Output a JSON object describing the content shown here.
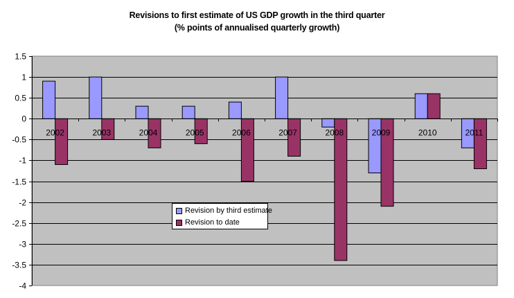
{
  "chart_data": {
    "type": "bar",
    "title": "Revisions to first estimate of US GDP growth in the third quarter",
    "subtitle": "(% points of annualised quarterly growth)",
    "xlabel": "",
    "ylabel": "",
    "ylim": [
      -4,
      1.5
    ],
    "yticks": [
      1.5,
      1,
      0.5,
      0,
      -0.5,
      -1,
      -1.5,
      -2,
      -2.5,
      -3,
      -3.5,
      -4
    ],
    "ytick_labels": [
      "1.5",
      "1",
      "0.5",
      "0",
      "-0.5",
      "-1",
      "-1.5",
      "-2",
      "-2.5",
      "-3",
      "-3.5",
      "-4"
    ],
    "grid": true,
    "categories": [
      "2002",
      "2003",
      "2004",
      "2005",
      "2006",
      "2007",
      "2008",
      "2009",
      "2010",
      "2011"
    ],
    "series": [
      {
        "name": "Revision by third estimate",
        "color": "#9999FF",
        "values": [
          0.9,
          1.0,
          0.3,
          0.3,
          0.4,
          1.0,
          -0.2,
          -1.3,
          0.6,
          -0.7
        ]
      },
      {
        "name": "Revision to date",
        "color": "#993366",
        "values": [
          -1.1,
          -0.5,
          -0.7,
          -0.6,
          -1.5,
          -0.9,
          -3.4,
          -2.1,
          0.6,
          -1.2
        ]
      }
    ],
    "legend_position": "center-left inside plot",
    "plot_background": "#C0C0C0"
  }
}
